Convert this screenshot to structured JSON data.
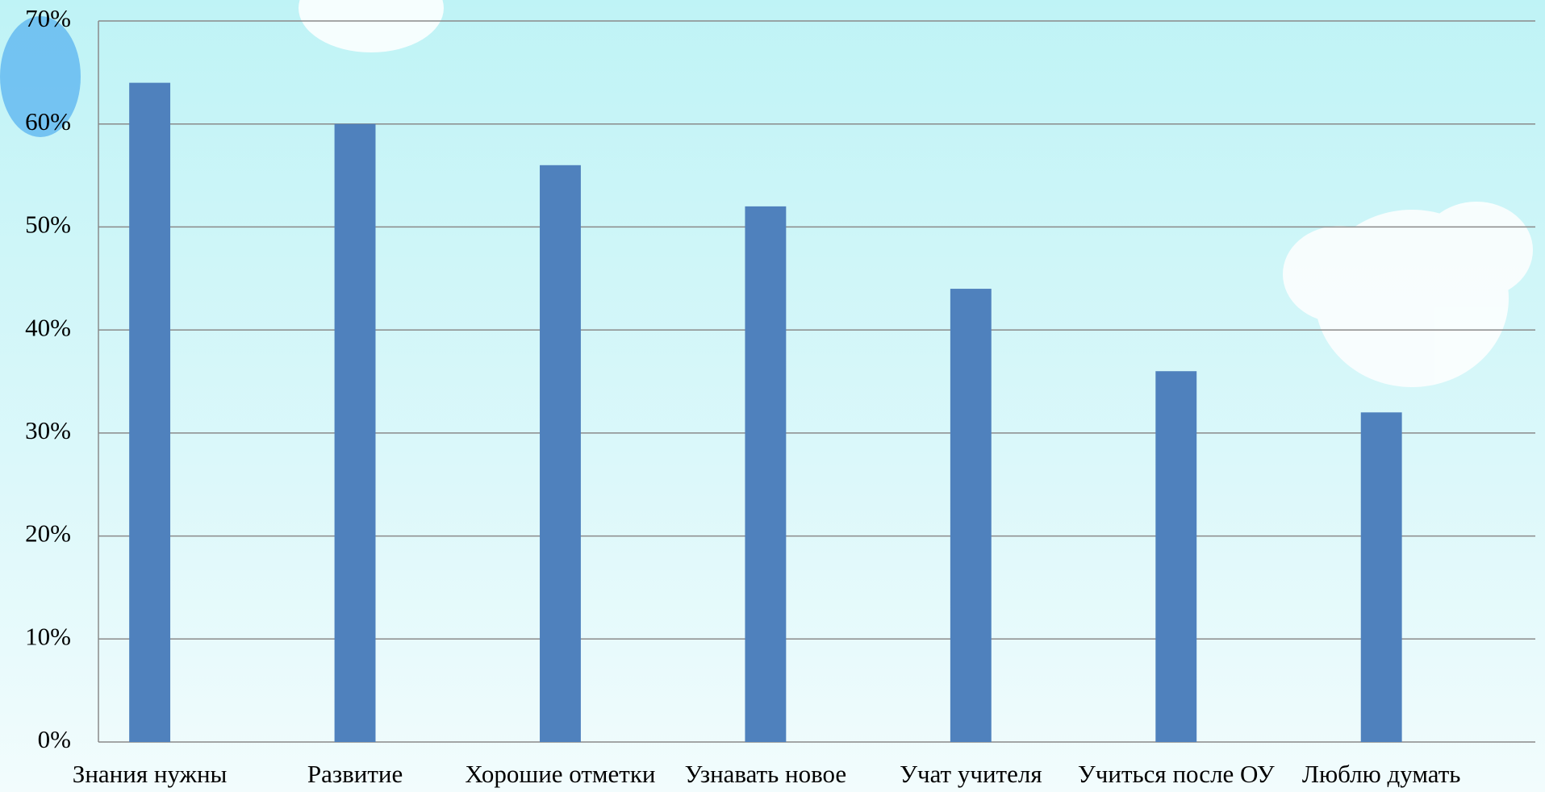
{
  "chart_data": {
    "type": "bar",
    "categories": [
      "Знания нужны",
      "Развитие",
      "Хорошие отметки",
      "Узнавать новое",
      "Учат учителя",
      "Учиться после ОУ",
      "Люблю думать"
    ],
    "values": [
      64,
      60,
      56,
      52,
      44,
      36,
      32
    ],
    "color": "#4f81bd",
    "ylim": [
      0,
      70
    ],
    "yticks": [
      {
        "value": 0,
        "label": "0%"
      },
      {
        "value": 10,
        "label": "10%"
      },
      {
        "value": 20,
        "label": "20%"
      },
      {
        "value": 30,
        "label": "30%"
      },
      {
        "value": 40,
        "label": "40%"
      },
      {
        "value": 50,
        "label": "50%"
      },
      {
        "value": 60,
        "label": "60%"
      },
      {
        "value": 70,
        "label": "70%"
      }
    ],
    "grid": true
  }
}
